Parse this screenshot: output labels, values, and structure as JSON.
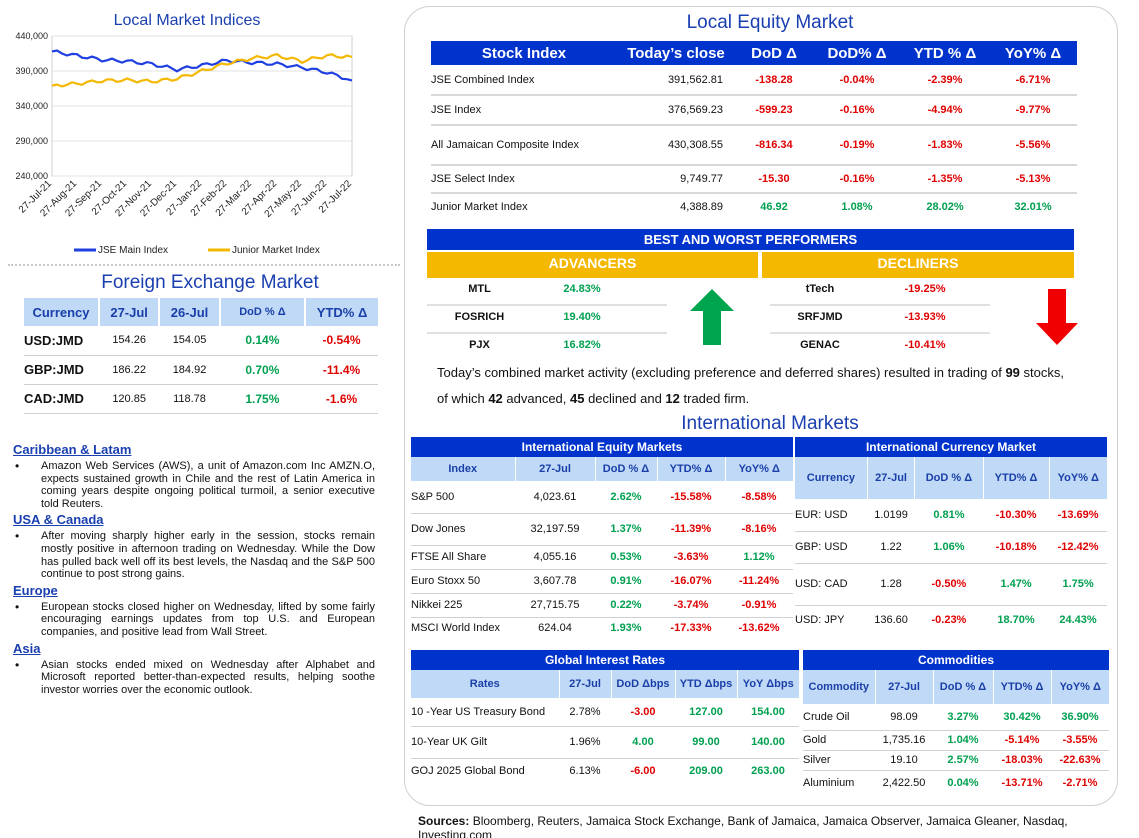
{
  "local_indices_chart": {
    "title": "Local Market Indices",
    "chart_data": {
      "type": "line",
      "title": "Local Market Indices",
      "ylim": [
        240000,
        440000
      ],
      "yticks": [
        "440,000",
        "390,000",
        "340,000",
        "290,000",
        "240,000"
      ],
      "xticks": [
        "27-Jul-21",
        "27-Aug-21",
        "27-Sep-21",
        "27-Oct-21",
        "27-Nov-21",
        "27-Dec-21",
        "27-Jan-22",
        "27-Feb-22",
        "27-Mar-22",
        "27-Apr-22",
        "27-May-22",
        "27-Jun-22",
        "27-Jul-22"
      ],
      "series": [
        {
          "name": "JSE Main Index",
          "color": "#1f3fe0",
          "values": [
            418000,
            412000,
            406000,
            404000,
            400000,
            392000,
            398000,
            405000,
            402000,
            400000,
            395000,
            388000,
            376569
          ]
        },
        {
          "name": "Junior Market Index",
          "color": "#f5b800",
          "values": [
            369000,
            372000,
            376000,
            377000,
            375000,
            379000,
            390000,
            401000,
            408000,
            412000,
            404000,
            412000,
            410000
          ]
        }
      ]
    }
  },
  "local_equity": {
    "title": "Local Equity Market",
    "headers": [
      "Stock Index",
      "Today’s close",
      "DoD  Δ",
      "DoD% Δ",
      "YTD % Δ",
      "YoY% Δ"
    ],
    "rows": [
      {
        "name": "JSE Combined Index",
        "close": "391,562.81",
        "dod": "-138.28",
        "dodp": "-0.04%",
        "ytd": "-2.39%",
        "yoy": "-6.71%",
        "up": false
      },
      {
        "name": "JSE Index",
        "close": "376,569.23",
        "dod": "-599.23",
        "dodp": "-0.16%",
        "ytd": "-4.94%",
        "yoy": "-9.77%",
        "up": false
      },
      {
        "name": "All Jamaican Composite Index",
        "close": "430,308.55",
        "dod": "-816.34",
        "dodp": "-0.19%",
        "ytd": "-1.83%",
        "yoy": "-5.56%",
        "up": false
      },
      {
        "name": "JSE Select Index",
        "close": "9,749.77",
        "dod": "-15.30",
        "dodp": "-0.16%",
        "ytd": "-1.35%",
        "yoy": "-5.13%",
        "up": false
      },
      {
        "name": "Junior Market Index",
        "close": "4,388.89",
        "dod": "46.92",
        "dodp": "1.08%",
        "ytd": "28.02%",
        "yoy": "32.01%",
        "up": true
      }
    ]
  },
  "performers": {
    "title": "BEST AND WORST PERFORMERS",
    "advancers_label": "ADVANCERS",
    "decliners_label": "DECLINERS",
    "advancers": [
      {
        "ticker": "MTL",
        "pct": "24.83%"
      },
      {
        "ticker": "FOSRICH",
        "pct": "19.40%"
      },
      {
        "ticker": "PJX",
        "pct": "16.82%"
      }
    ],
    "decliners": [
      {
        "ticker": "tTech",
        "pct": "-19.25%"
      },
      {
        "ticker": "SRFJMD",
        "pct": "-13.93%"
      },
      {
        "ticker": "GENAC",
        "pct": "-10.41%"
      }
    ],
    "summary_prefix": "Today’s combined market activity (excluding preference and deferred shares) resulted in trading of ",
    "traded": "99",
    "summary_mid1": " stocks, of which ",
    "advanced": "42",
    "summary_mid2": " advanced, ",
    "declined": "45",
    "summary_mid3": " declined and ",
    "firm": "12",
    "summary_end": " traded firm."
  },
  "fx": {
    "title": "Foreign Exchange Market",
    "headers": [
      "Currency",
      "27-Jul",
      "26-Jul",
      "DoD % Δ",
      "YTD% Δ"
    ],
    "rows": [
      {
        "cur": "USD:JMD",
        "d1": "154.26",
        "d0": "154.05",
        "dod": "0.14%",
        "ytd": "-0.54%"
      },
      {
        "cur": "GBP:JMD",
        "d1": "186.22",
        "d0": "184.92",
        "dod": "0.70%",
        "ytd": "-11.4%"
      },
      {
        "cur": "CAD:JMD",
        "d1": "120.85",
        "d0": "118.78",
        "dod": "1.75%",
        "ytd": "-1.6%"
      }
    ]
  },
  "news": [
    {
      "region": "Caribbean & Latam",
      "text": "Amazon Web Services (AWS), a unit of Amazon.com Inc AMZN.O, expects sustained growth in Chile and the rest of Latin America in coming years despite ongoing political turmoil, a senior executive told Reuters."
    },
    {
      "region": "USA & Canada",
      "text": "After moving sharply higher early in the session, stocks remain mostly positive in afternoon trading on Wednesday. While the Dow has pulled back well off its best levels, the Nasdaq and the S&P 500 continue to post strong gains."
    },
    {
      "region": "Europe",
      "text": "European stocks closed higher on Wednesday, lifted by some fairly encouraging earnings updates from top U.S. and European companies, and positive lead from Wall Street."
    },
    {
      "region": "Asia",
      "text": "Asian stocks ended mixed on Wednesday after Alphabet and Microsoft reported better-than-expected results, helping soothe investor worries over the economic outlook."
    }
  ],
  "intl": {
    "title": "International Markets",
    "equity": {
      "title": "International Equity Markets",
      "headers": [
        "Index",
        "27-Jul",
        "DoD % Δ",
        "YTD% Δ",
        "YoY% Δ"
      ],
      "rows": [
        {
          "n": "S&P 500",
          "v": "4,023.61",
          "dod": "2.62%",
          "ytd": "-15.58%",
          "yoy": "-8.58%"
        },
        {
          "n": "Dow Jones",
          "v": "32,197.59",
          "dod": "1.37%",
          "ytd": "-11.39%",
          "yoy": "-8.16%"
        },
        {
          "n": "FTSE All Share",
          "v": "4,055.16",
          "dod": "0.53%",
          "ytd": "-3.63%",
          "yoy": "1.12%"
        },
        {
          "n": "Euro Stoxx 50",
          "v": "3,607.78",
          "dod": "0.91%",
          "ytd": "-16.07%",
          "yoy": "-11.24%"
        },
        {
          "n": "Nikkei 225",
          "v": "27,715.75",
          "dod": "0.22%",
          "ytd": "-3.74%",
          "yoy": "-0.91%"
        },
        {
          "n": "MSCI World Index",
          "v": "624.04",
          "dod": "1.93%",
          "ytd": "-17.33%",
          "yoy": "-13.62%"
        }
      ]
    },
    "currency": {
      "title": "International Currency Market",
      "headers": [
        "Currency",
        "27-Jul",
        "DoD % Δ",
        "YTD% Δ",
        "YoY% Δ"
      ],
      "rows": [
        {
          "n": "EUR: USD",
          "v": "1.0199",
          "dod": "0.81%",
          "ytd": "-10.30%",
          "yoy": "-13.69%"
        },
        {
          "n": "GBP: USD",
          "v": "1.22",
          "dod": "1.06%",
          "ytd": "-10.18%",
          "yoy": "-12.42%"
        },
        {
          "n": "USD: CAD",
          "v": "1.28",
          "dod": "-0.50%",
          "ytd": "1.47%",
          "yoy": "1.75%"
        },
        {
          "n": "USD: JPY",
          "v": "136.60",
          "dod": "-0.23%",
          "ytd": "18.70%",
          "yoy": "24.43%"
        }
      ]
    },
    "rates": {
      "title": "Global Interest Rates",
      "headers": [
        "Rates",
        "27-Jul",
        "DoD Δbps",
        "YTD Δbps",
        "YoY Δbps"
      ],
      "rows": [
        {
          "n": "10 -Year US Treasury Bond",
          "v": "2.78%",
          "dod": "-3.00",
          "ytd": "127.00",
          "yoy": "154.00"
        },
        {
          "n": "10-Year UK Gilt",
          "v": "1.96%",
          "dod": "4.00",
          "ytd": "99.00",
          "yoy": "140.00"
        },
        {
          "n": "GOJ 2025 Global Bond",
          "v": "6.13%",
          "dod": "-6.00",
          "ytd": "209.00",
          "yoy": "263.00"
        }
      ]
    },
    "commodities": {
      "title": "Commodities",
      "headers": [
        "Commodity",
        "27-Jul",
        "DoD % Δ",
        "YTD% Δ",
        "YoY% Δ"
      ],
      "rows": [
        {
          "n": "Crude Oil",
          "v": "98.09",
          "dod": "3.27%",
          "ytd": "30.42%",
          "yoy": "36.90%"
        },
        {
          "n": "Gold",
          "v": "1,735.16",
          "dod": "1.04%",
          "ytd": "-5.14%",
          "yoy": "-3.55%"
        },
        {
          "n": "Silver",
          "v": "19.10",
          "dod": "2.57%",
          "ytd": "-18.03%",
          "yoy": "-22.63%"
        },
        {
          "n": "Aluminium",
          "v": "2,422.50",
          "dod": "0.04%",
          "ytd": "-13.71%",
          "yoy": "-2.71%"
        }
      ]
    }
  },
  "sources": {
    "label": "Sources:",
    "text": " Bloomberg, Reuters, Jamaica Stock Exchange, Bank of Jamaica, Jamaica Observer, Jamaica Gleaner, Nasdaq, Investing.com"
  }
}
